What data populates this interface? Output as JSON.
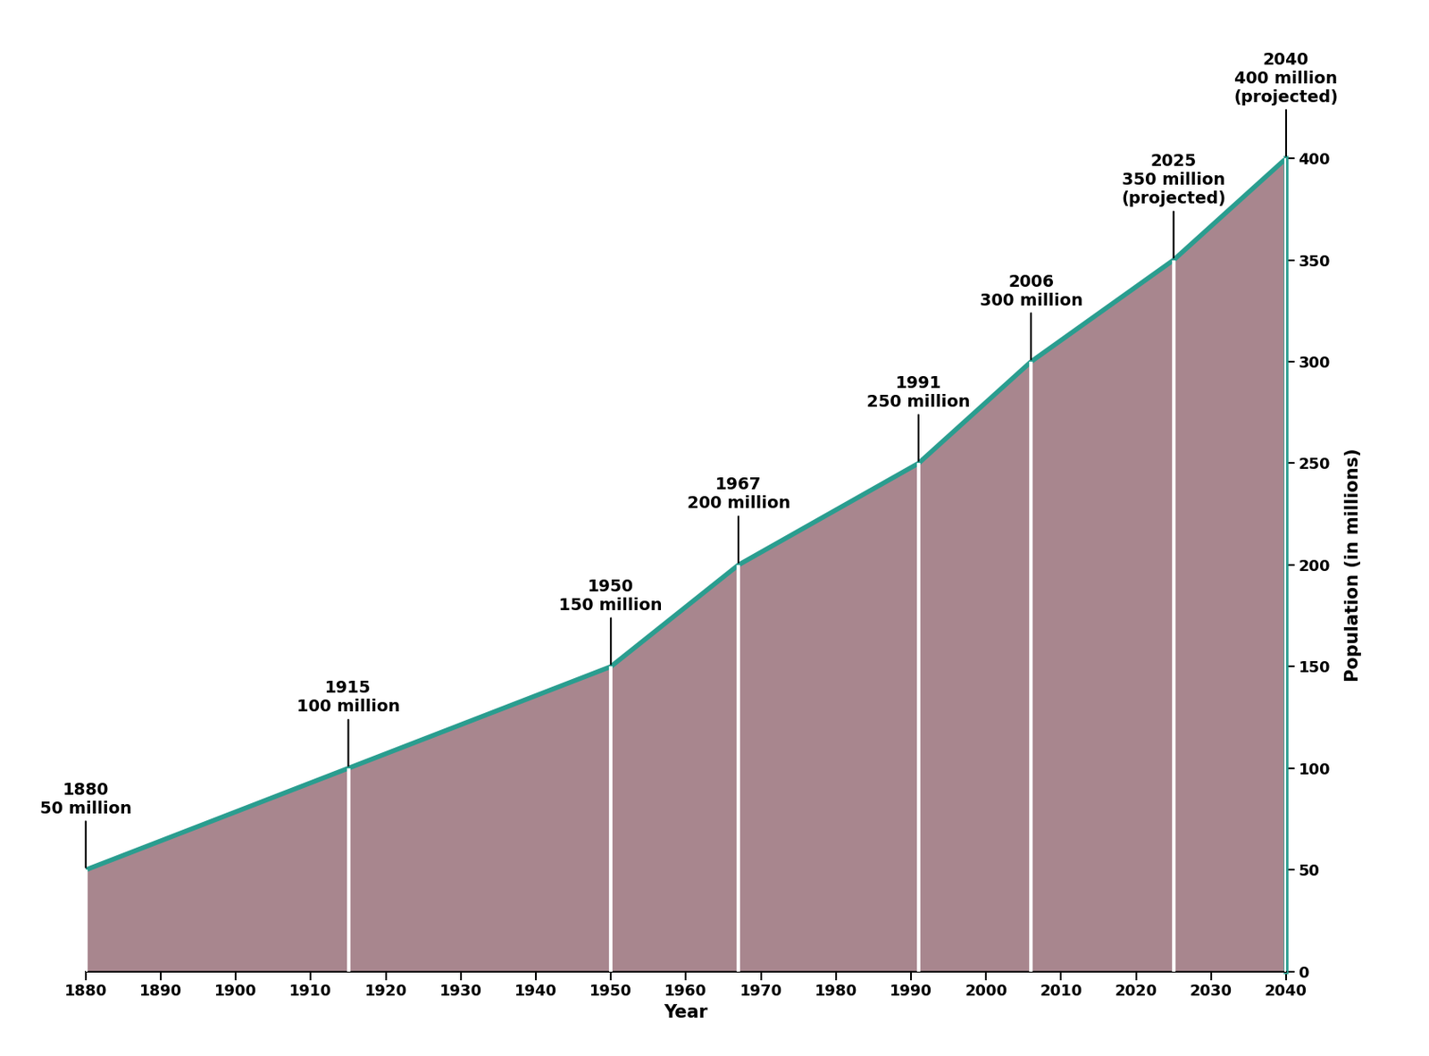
{
  "chart_data": {
    "type": "area",
    "x": [
      1880,
      1915,
      1950,
      1967,
      1991,
      2006,
      2025,
      2040
    ],
    "values": [
      50,
      100,
      150,
      200,
      250,
      300,
      350,
      400
    ],
    "color": "#a8868e",
    "x_label": "Year",
    "y_label": "Population (in millions)",
    "xlim": [
      1880,
      2040
    ],
    "xticks": [
      1880,
      1890,
      1900,
      1910,
      1920,
      1930,
      1940,
      1950,
      1960,
      1970,
      1980,
      1990,
      2000,
      2010,
      2020,
      2030,
      2040
    ],
    "ylim": [
      0,
      400
    ],
    "yticks": [
      0,
      50,
      100,
      150,
      200,
      250,
      300,
      350,
      400
    ],
    "grid": false,
    "annotations": [
      {
        "x": 1880,
        "y": 50,
        "lines": [
          "1880",
          "50 million"
        ]
      },
      {
        "x": 1915,
        "y": 100,
        "lines": [
          "1915",
          "100 million"
        ]
      },
      {
        "x": 1950,
        "y": 150,
        "lines": [
          "1950",
          "150 million"
        ]
      },
      {
        "x": 1967,
        "y": 200,
        "lines": [
          "1967",
          "200 million"
        ]
      },
      {
        "x": 1991,
        "y": 250,
        "lines": [
          "1991",
          "250 million"
        ]
      },
      {
        "x": 2006,
        "y": 300,
        "lines": [
          "2006",
          "300 million"
        ]
      },
      {
        "x": 2025,
        "y": 350,
        "lines": [
          "2025",
          "350 million",
          "(projected)"
        ]
      },
      {
        "x": 2040,
        "y": 400,
        "lines": [
          "2040",
          "400 million",
          "(projected)"
        ]
      }
    ]
  }
}
